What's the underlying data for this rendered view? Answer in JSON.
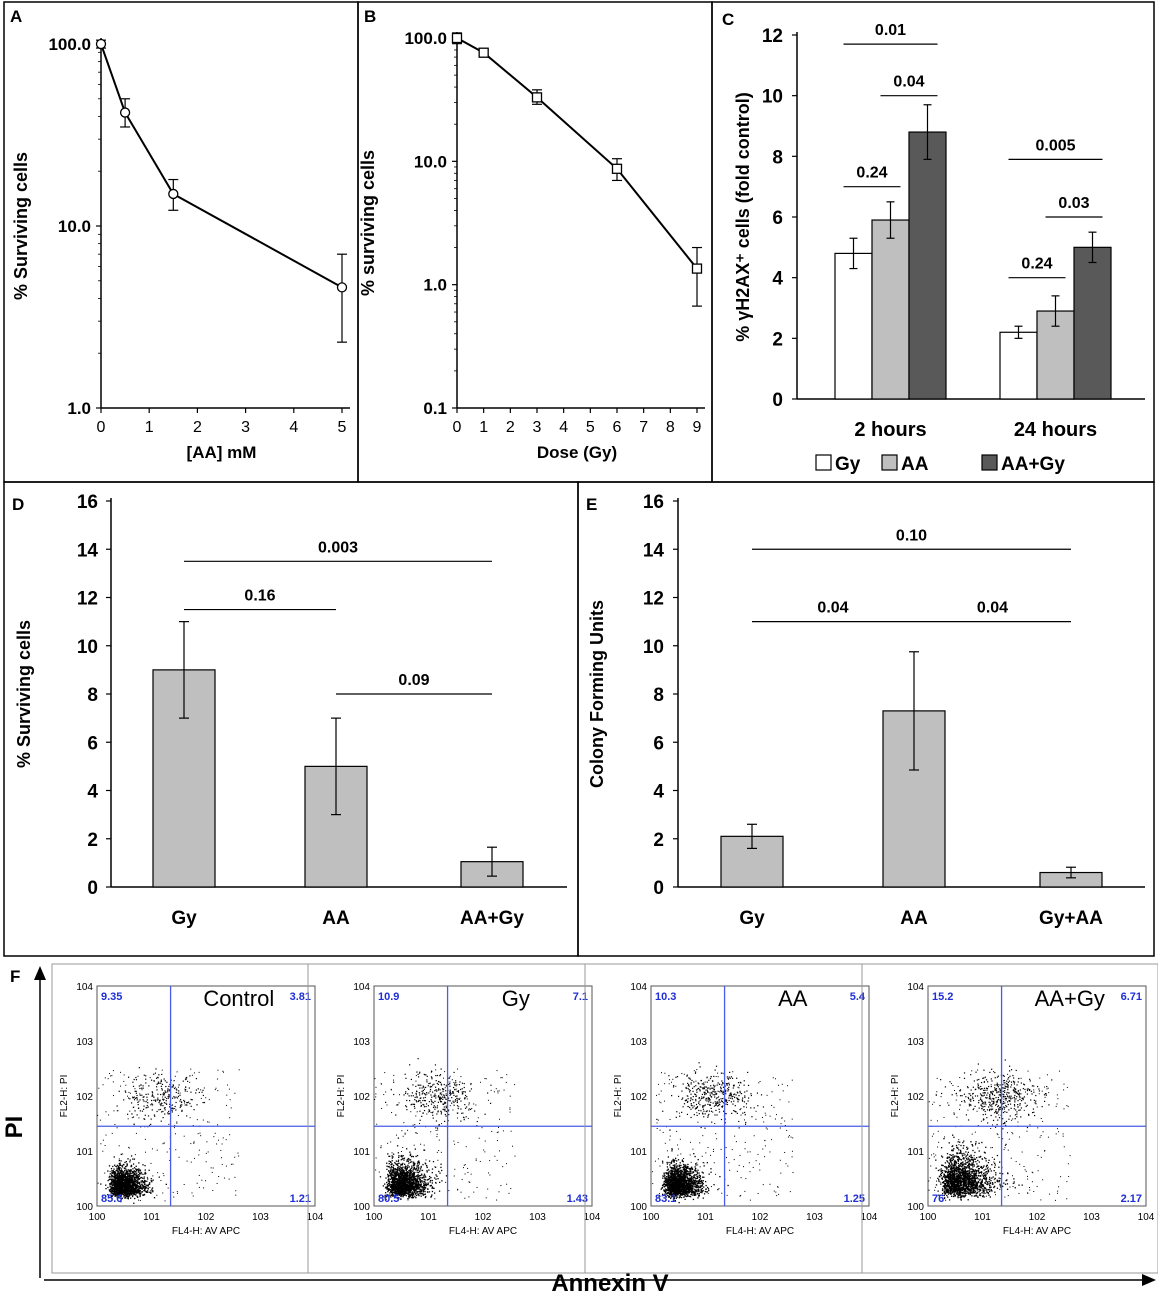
{
  "chart_data": [
    {
      "panel": "A",
      "type": "line",
      "scale": "log",
      "title": "",
      "xlabel": "[AA] mM",
      "ylabel": "% Surviving cells",
      "xlim": [
        0,
        5
      ],
      "ylim": [
        1,
        100
      ],
      "xticks": [
        "0",
        "1",
        "2",
        "3",
        "4",
        "5"
      ],
      "yticks": [
        "1.0",
        "10.0",
        "100.0"
      ],
      "marker": "circle",
      "x": [
        0,
        0.5,
        1.5,
        5
      ],
      "y": [
        100,
        42,
        15,
        4.6
      ],
      "err_lo": [
        95,
        35,
        12.2,
        2.3
      ],
      "err_hi": [
        105,
        50,
        18,
        7
      ]
    },
    {
      "panel": "B",
      "type": "line",
      "scale": "log",
      "title": "",
      "xlabel": "Dose (Gy)",
      "ylabel": "% surviving cells",
      "xlim": [
        0,
        9
      ],
      "ylim": [
        0.1,
        100
      ],
      "xticks": [
        "0",
        "1",
        "2",
        "3",
        "4",
        "5",
        "6",
        "7",
        "8",
        "9"
      ],
      "yticks": [
        "0.1",
        "1.0",
        "10.0",
        "100.0"
      ],
      "marker": "square",
      "x": [
        0,
        1,
        3,
        6,
        9
      ],
      "y": [
        100,
        76,
        33,
        8.7,
        1.35
      ],
      "err_lo": [
        90,
        72,
        29,
        7,
        0.67
      ],
      "err_hi": [
        110,
        80,
        38,
        10.5,
        2
      ]
    },
    {
      "panel": "C",
      "type": "bar",
      "title": "",
      "xlabel": "",
      "ylabel": "% γH2AX⁺ cells (fold control)",
      "ylim": [
        0,
        12
      ],
      "yticks": [
        "0",
        "2",
        "4",
        "6",
        "8",
        "10",
        "12"
      ],
      "categories": [
        "2 hours",
        "24 hours"
      ],
      "series": [
        {
          "name": "Gy",
          "color": "#ffffff",
          "values": [
            4.8,
            2.2
          ],
          "errors": [
            0.5,
            0.2
          ]
        },
        {
          "name": "AA",
          "color": "#bfbfbf",
          "values": [
            5.9,
            2.9
          ],
          "errors": [
            0.6,
            0.5
          ]
        },
        {
          "name": "AA+Gy",
          "color": "#595959",
          "values": [
            8.8,
            5.0
          ],
          "errors": [
            0.9,
            0.5
          ]
        }
      ],
      "annotations": [
        {
          "text": "0.01",
          "y": 11.7,
          "group": 0,
          "from": 0,
          "to": 2
        },
        {
          "text": "0.04",
          "y": 10.0,
          "group": 0,
          "from": 1,
          "to": 2
        },
        {
          "text": "0.24",
          "y": 7.0,
          "group": 0,
          "from": 0,
          "to": 1
        },
        {
          "text": "0.005",
          "y": 7.9,
          "group": 1,
          "from": 0,
          "to": 2
        },
        {
          "text": "0.03",
          "y": 6.0,
          "group": 1,
          "from": 1,
          "to": 2
        },
        {
          "text": "0.24",
          "y": 4.0,
          "group": 1,
          "from": 0,
          "to": 1
        }
      ],
      "legend": [
        "Gy",
        "AA",
        "AA+Gy"
      ]
    },
    {
      "panel": "D",
      "type": "bar",
      "title": "",
      "xlabel": "",
      "ylabel": "% Surviving  cells",
      "ylim": [
        0,
        16
      ],
      "yticks": [
        "0",
        "2",
        "4",
        "6",
        "8",
        "10",
        "12",
        "14",
        "16"
      ],
      "categories": [
        "Gy",
        "AA",
        "AA+Gy"
      ],
      "values": [
        9.0,
        5.0,
        1.05
      ],
      "errors": [
        2.0,
        2.0,
        0.6
      ],
      "annotations": [
        {
          "text": "0.003",
          "y": 13.5,
          "from": 0,
          "to": 2
        },
        {
          "text": "0.16",
          "y": 11.5,
          "from": 0,
          "to": 1
        },
        {
          "text": "0.09",
          "y": 8.0,
          "from": 1,
          "to": 2
        }
      ]
    },
    {
      "panel": "E",
      "type": "bar",
      "title": "",
      "xlabel": "",
      "ylabel": "Colony  Forming Units",
      "ylim": [
        0,
        16
      ],
      "yticks": [
        "0",
        "2",
        "4",
        "6",
        "8",
        "10",
        "12",
        "14",
        "16"
      ],
      "categories": [
        "Gy",
        "AA",
        "Gy+AA"
      ],
      "values": [
        2.1,
        7.3,
        0.6
      ],
      "errors": [
        0.5,
        2.45,
        0.22
      ],
      "annotations": [
        {
          "text": "0.10",
          "y": 14.0,
          "from": 0,
          "to": 2
        },
        {
          "text": "0.04",
          "y": 11.0,
          "from": 0,
          "to": 1
        },
        {
          "text": "0.04",
          "y": 11.0,
          "from": 1,
          "to": 2
        }
      ]
    },
    {
      "panel": "F",
      "type": "scatter",
      "xlabel": "Annexin V",
      "ylabel": "PI",
      "plot_xlabel": "FL4-H: AV APC",
      "plot_ylabel": "FL2-H: PI",
      "xlim": [
        1,
        10000
      ],
      "ylim": [
        1,
        10000
      ],
      "ticks": [
        "0",
        "1",
        "2",
        "3",
        "4"
      ],
      "plots": [
        {
          "label": "Control",
          "quadrants": {
            "ul": "9.35",
            "ur": "3.81",
            "ll": "85.6",
            "lr": "1.21"
          }
        },
        {
          "label": "Gy",
          "quadrants": {
            "ul": "10.9",
            "ur": "7.1",
            "ll": "80.5",
            "lr": "1.43"
          }
        },
        {
          "label": "AA",
          "quadrants": {
            "ul": "10.3",
            "ur": "5.4",
            "ll": "83.1",
            "lr": "1.25"
          }
        },
        {
          "label": "AA+Gy",
          "quadrants": {
            "ul": "15.2",
            "ur": "6.71",
            "ll": "76",
            "lr": "2.17"
          }
        }
      ]
    }
  ]
}
